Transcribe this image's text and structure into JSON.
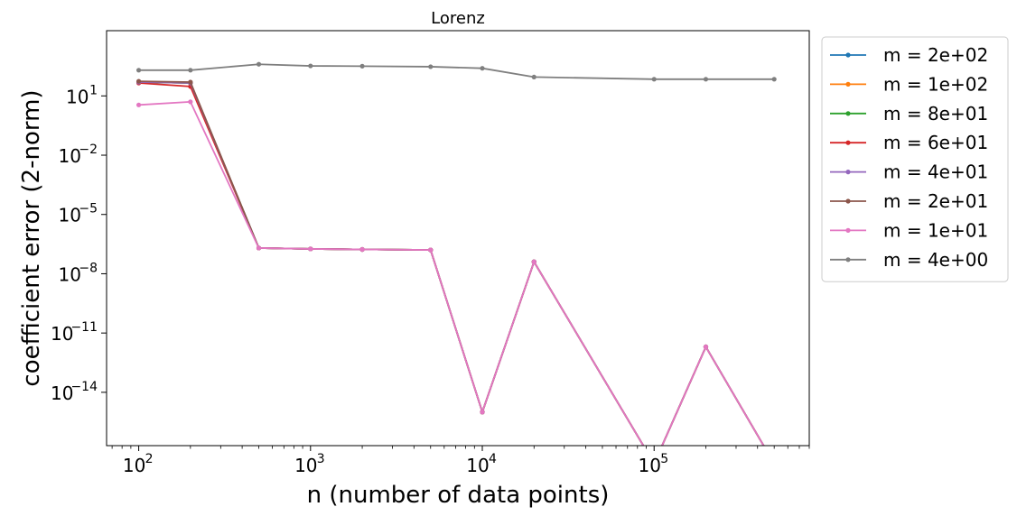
{
  "chart_data": {
    "type": "line",
    "title": "Lorenz",
    "xlabel": "n (number of data points)",
    "ylabel": "coefficient error (2-norm)",
    "xscale": "log",
    "yscale": "log",
    "xlim": [
      65,
      800000
    ],
    "ylim": [
      2e-17,
      20000
    ],
    "x_ticks": [
      {
        "value": 100,
        "base": "10",
        "exp": "2"
      },
      {
        "value": 1000,
        "base": "10",
        "exp": "3"
      },
      {
        "value": 10000,
        "base": "10",
        "exp": "4"
      },
      {
        "value": 100000,
        "base": "10",
        "exp": "5"
      }
    ],
    "y_ticks": [
      {
        "value": 10,
        "base": "10",
        "exp": "1"
      },
      {
        "value": 0.01,
        "base": "10",
        "exp": "−2"
      },
      {
        "value": 1e-05,
        "base": "10",
        "exp": "−5"
      },
      {
        "value": 1e-08,
        "base": "10",
        "exp": "−8"
      },
      {
        "value": 1e-11,
        "base": "10",
        "exp": "−11"
      },
      {
        "value": 1e-14,
        "base": "10",
        "exp": "−14"
      }
    ],
    "grid": false,
    "legend_position": "outside upper right",
    "series": [
      {
        "name": "m = 2e+02",
        "color": "#1f77b4",
        "x": [
          100,
          200,
          500,
          1000,
          2000,
          5000,
          10000,
          20000,
          100000,
          200000,
          500000
        ],
        "y": [
          50,
          45,
          2e-07,
          1.8e-07,
          1.7e-07,
          1.6e-07,
          1e-15,
          4e-08,
          null,
          2e-12,
          null
        ]
      },
      {
        "name": "m = 1e+02",
        "color": "#ff7f0e",
        "x": [
          100,
          200,
          500,
          1000,
          2000,
          5000,
          10000,
          20000,
          100000,
          200000,
          500000
        ],
        "y": [
          50,
          45,
          2e-07,
          1.8e-07,
          1.7e-07,
          1.6e-07,
          1e-15,
          4e-08,
          null,
          2e-12,
          null
        ]
      },
      {
        "name": "m = 8e+01",
        "color": "#2ca02c",
        "x": [
          100,
          200,
          500,
          1000,
          2000,
          5000,
          10000,
          20000,
          100000,
          200000,
          500000
        ],
        "y": [
          50,
          45,
          2e-07,
          1.8e-07,
          1.7e-07,
          1.6e-07,
          1e-15,
          4e-08,
          null,
          2e-12,
          null
        ]
      },
      {
        "name": "m = 6e+01",
        "color": "#d62728",
        "x": [
          100,
          200,
          500,
          1000,
          2000,
          5000,
          10000,
          20000,
          100000,
          200000,
          500000
        ],
        "y": [
          45,
          30,
          2e-07,
          1.8e-07,
          1.7e-07,
          1.6e-07,
          1e-15,
          4e-08,
          null,
          2e-12,
          null
        ]
      },
      {
        "name": "m = 4e+01",
        "color": "#9467bd",
        "x": [
          100,
          200,
          500,
          1000,
          2000,
          5000,
          10000,
          20000,
          100000,
          200000,
          500000
        ],
        "y": [
          50,
          45,
          2e-07,
          1.8e-07,
          1.7e-07,
          1.6e-07,
          1e-15,
          4e-08,
          null,
          2e-12,
          null
        ]
      },
      {
        "name": "m = 2e+01",
        "color": "#8c564b",
        "x": [
          100,
          200,
          500,
          1000,
          2000,
          5000,
          10000,
          20000,
          100000,
          200000,
          500000
        ],
        "y": [
          55,
          50,
          2e-07,
          1.8e-07,
          1.7e-07,
          1.6e-07,
          1e-15,
          4e-08,
          null,
          2e-12,
          null
        ]
      },
      {
        "name": "m = 1e+01",
        "color": "#e377c2",
        "x": [
          100,
          200,
          500,
          1000,
          2000,
          5000,
          10000,
          20000,
          100000,
          200000,
          500000
        ],
        "y": [
          3.5,
          5,
          2e-07,
          1.8e-07,
          1.7e-07,
          1.6e-07,
          1e-15,
          4e-08,
          null,
          2e-12,
          null
        ]
      },
      {
        "name": "m = 4e+00",
        "color": "#7f7f7f",
        "x": [
          100,
          200,
          500,
          1000,
          2000,
          5000,
          10000,
          20000,
          100000,
          200000,
          500000
        ],
        "y": [
          200,
          200,
          400,
          330,
          320,
          300,
          250,
          90,
          70,
          70,
          70
        ]
      }
    ]
  }
}
